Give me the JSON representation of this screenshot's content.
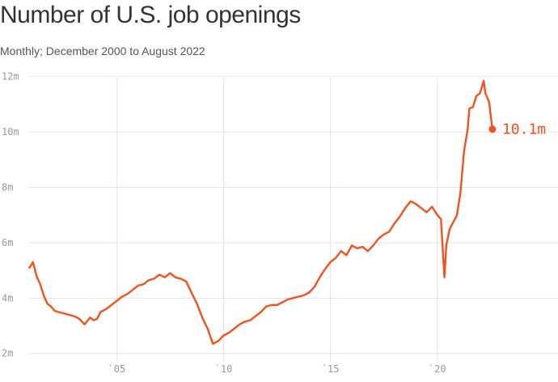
{
  "colors": {
    "line": "#f5511e",
    "grid": "#e4e4e4",
    "tick_text": "#999999"
  },
  "chart_data": {
    "type": "line",
    "title": "Number of U.S. job openings",
    "subtitle": "Monthly; December 2000 to August 2022",
    "xlabel": "",
    "ylabel": "",
    "xlim": [
      2000.9,
      2022.62
    ],
    "ylim": [
      1.7,
      12.4
    ],
    "x_ticks": [
      2005,
      2010,
      2015,
      2020
    ],
    "x_tick_labels": [
      "`05",
      "`10",
      "`15",
      "`20"
    ],
    "y_ticks": [
      2,
      4,
      6,
      8,
      10,
      12
    ],
    "y_tick_labels": [
      "2m",
      "4m",
      "6m",
      "8m",
      "10m",
      "12m"
    ],
    "grid": true,
    "last_value_label": "10.1m",
    "series": [
      {
        "x": [
          2000.92,
          2001.08,
          2001.25,
          2001.42,
          2001.58,
          2001.75,
          2001.92,
          2002.08,
          2002.25,
          2002.5,
          2002.75,
          2003.0,
          2003.25,
          2003.5,
          2003.75,
          2003.92,
          2004.08,
          2004.25,
          2004.5,
          2004.75,
          2005.0,
          2005.25,
          2005.5,
          2005.75,
          2006.0,
          2006.25,
          2006.5,
          2006.75,
          2007.0,
          2007.25,
          2007.5,
          2007.75,
          2008.0,
          2008.25,
          2008.5,
          2008.75,
          2009.0,
          2009.25,
          2009.5,
          2009.75,
          2010.0,
          2010.25,
          2010.5,
          2010.75,
          2011.0,
          2011.25,
          2011.5,
          2011.75,
          2012.0,
          2012.25,
          2012.5,
          2012.75,
          2013.0,
          2013.25,
          2013.5,
          2013.75,
          2014.0,
          2014.25,
          2014.5,
          2014.75,
          2015.0,
          2015.25,
          2015.5,
          2015.75,
          2016.0,
          2016.25,
          2016.5,
          2016.75,
          2017.0,
          2017.25,
          2017.5,
          2017.75,
          2018.0,
          2018.25,
          2018.5,
          2018.75,
          2019.0,
          2019.25,
          2019.5,
          2019.75,
          2020.0,
          2020.17,
          2020.33,
          2020.42,
          2020.58,
          2020.75,
          2020.92,
          2021.08,
          2021.25,
          2021.42,
          2021.5,
          2021.67,
          2021.83,
          2022.0,
          2022.17,
          2022.25,
          2022.42,
          2022.58
        ],
        "y": [
          5.1,
          5.3,
          4.8,
          4.5,
          4.1,
          3.8,
          3.7,
          3.55,
          3.5,
          3.45,
          3.4,
          3.35,
          3.25,
          3.05,
          3.3,
          3.2,
          3.25,
          3.5,
          3.6,
          3.75,
          3.9,
          4.05,
          4.15,
          4.3,
          4.45,
          4.5,
          4.65,
          4.7,
          4.85,
          4.75,
          4.9,
          4.75,
          4.7,
          4.6,
          4.2,
          3.8,
          3.3,
          2.9,
          2.35,
          2.45,
          2.65,
          2.75,
          2.9,
          3.05,
          3.15,
          3.2,
          3.35,
          3.5,
          3.7,
          3.75,
          3.75,
          3.85,
          3.95,
          4.0,
          4.05,
          4.1,
          4.2,
          4.4,
          4.75,
          5.05,
          5.3,
          5.45,
          5.7,
          5.55,
          5.9,
          5.8,
          5.85,
          5.7,
          5.9,
          6.15,
          6.3,
          6.4,
          6.7,
          6.95,
          7.25,
          7.5,
          7.4,
          7.25,
          7.1,
          7.3,
          7.0,
          6.85,
          4.75,
          5.9,
          6.5,
          6.75,
          7.0,
          7.8,
          9.3,
          10.1,
          10.85,
          10.9,
          11.3,
          11.4,
          11.85,
          11.4,
          11.1,
          10.1
        ]
      }
    ]
  }
}
